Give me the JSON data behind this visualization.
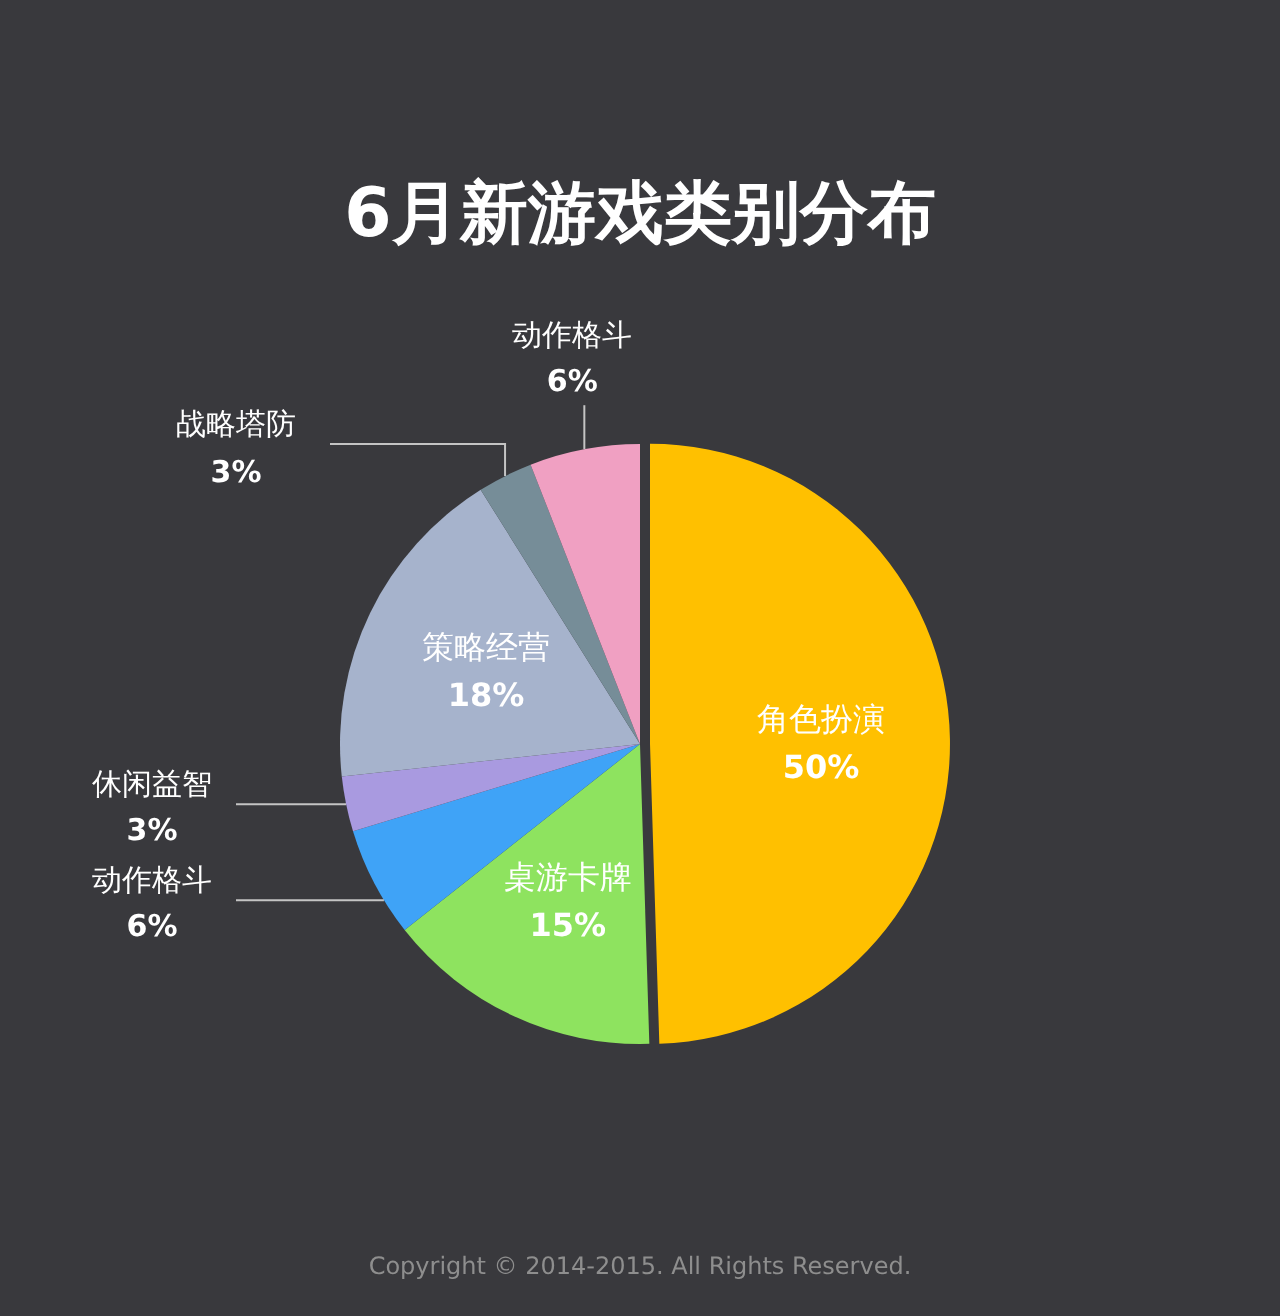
{
  "chart_data": {
    "type": "pie",
    "title": "6月新游戏类别分布",
    "categories": [
      "角色扮演",
      "桌游卡牌",
      "动作格斗",
      "休闲益智",
      "策略经营",
      "战略塔防",
      "动作格斗"
    ],
    "values": [
      50,
      15,
      6,
      3,
      18,
      3,
      6
    ],
    "colors": [
      "#ffc000",
      "#8ee35f",
      "#3fa3f7",
      "#a99ae0",
      "#a6b3cc",
      "#768d98",
      "#f0a0c2"
    ],
    "value_labels": [
      "50%",
      "15%",
      "6%",
      "3%",
      "18%",
      "3%",
      "6%"
    ],
    "annotations": [
      "Copyright © 2014-2015. All Rights Reserved."
    ]
  }
}
